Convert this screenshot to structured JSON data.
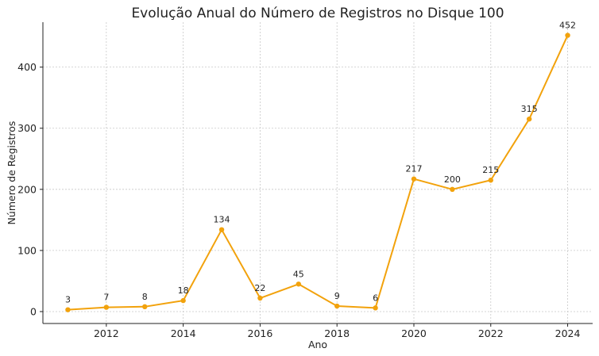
{
  "chart_data": {
    "type": "line",
    "title": "Evolução Anual do Número de Registros no Disque 100",
    "xlabel": "Ano",
    "ylabel": "Número de Registros",
    "x": [
      2011,
      2012,
      2013,
      2014,
      2015,
      2016,
      2017,
      2018,
      2019,
      2020,
      2021,
      2022,
      2023,
      2024
    ],
    "series": [
      {
        "values": [
          3,
          7,
          8,
          18,
          134,
          22,
          45,
          9,
          6,
          217,
          200,
          215,
          315,
          452
        ],
        "color": "#f2a20c"
      }
    ],
    "data_labels": [
      "3",
      "7",
      "8",
      "18",
      "134",
      "22",
      "45",
      "9",
      "6",
      "217",
      "200",
      "215",
      "315",
      "452"
    ],
    "xticks": [
      2012,
      2014,
      2016,
      2018,
      2020,
      2022,
      2024
    ],
    "xtick_labels": [
      "2012",
      "2014",
      "2016",
      "2018",
      "2020",
      "2022",
      "2024"
    ],
    "yticks": [
      0,
      100,
      200,
      300,
      400
    ],
    "ytick_labels": [
      "0",
      "100",
      "200",
      "300",
      "400"
    ],
    "xlim": [
      2010.35,
      2024.65
    ],
    "ylim": [
      -19.5,
      473.5
    ],
    "grid": true,
    "legend": "none",
    "marker": "circle"
  }
}
